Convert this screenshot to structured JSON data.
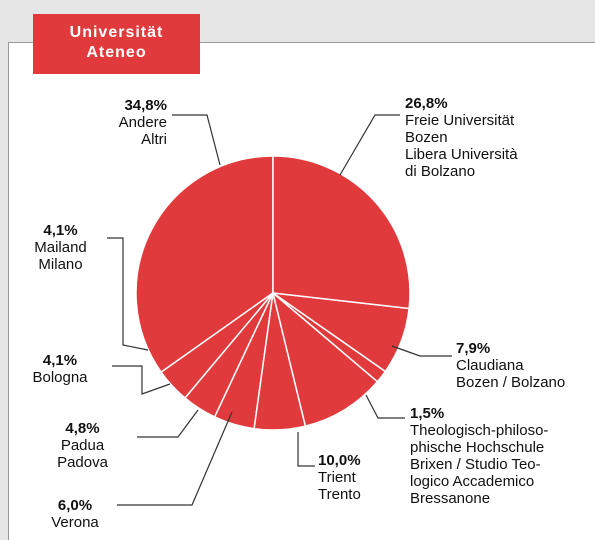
{
  "chart_data": {
    "type": "pie",
    "title": "Universität\nAteneo",
    "color": "#e03a3c",
    "categories": [
      "Freie Universität\nBozen\nLibera Università\ndi Bolzano",
      "Claudiana\nBozen / Bolzano",
      "Theologisch-philoso-\nphische Hochschule\nBrixen / Studio Teo-\nlogico Accademico\nBressanone",
      "Trient\nTrento",
      "Verona",
      "Padua\nPadova",
      "Bologna",
      "Mailand\nMilano",
      "Andere\nAltri"
    ],
    "values": [
      26.8,
      7.9,
      1.5,
      10.0,
      6.0,
      4.8,
      4.1,
      4.1,
      34.8
    ],
    "value_labels": [
      "26,8%",
      "7,9%",
      "1,5%",
      "10,0%",
      "6,0%",
      "4,8%",
      "4,1%",
      "4,1%",
      "34,8%"
    ]
  }
}
